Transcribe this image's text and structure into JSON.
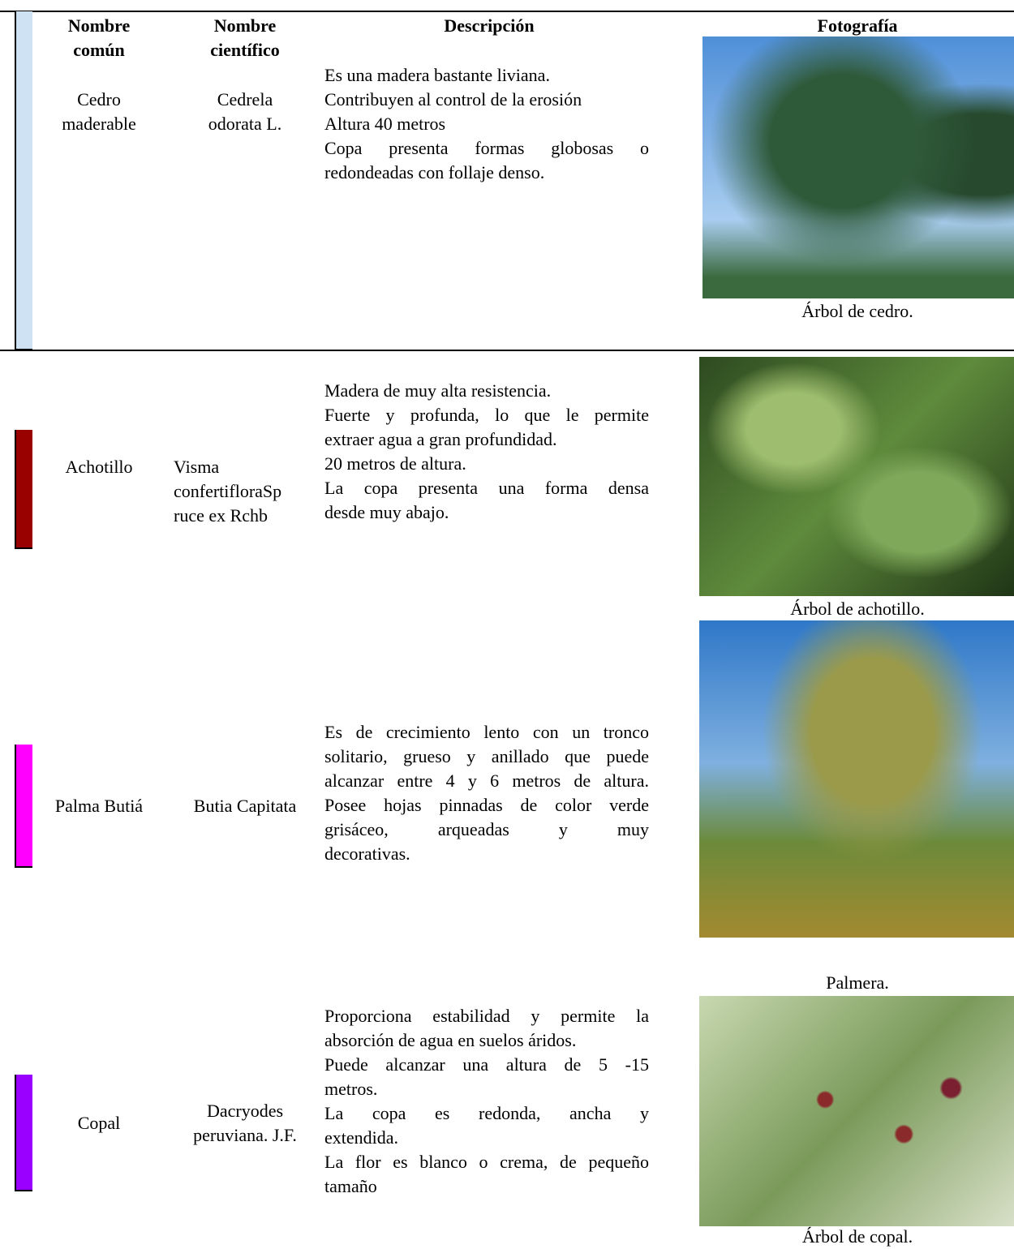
{
  "table": {
    "headers": [
      [
        "Nombre",
        "común"
      ],
      [
        "Nombre",
        "científico"
      ],
      [
        "Descripción"
      ],
      [
        "Fotografía"
      ]
    ],
    "rows": [
      {
        "color": "#cfe2f3",
        "common_name": [
          "Cedro",
          "maderable"
        ],
        "scientific_name": [
          "Cedrela",
          "odorata L."
        ],
        "description": [
          "Es una madera bastante liviana.",
          "Contribuyen al control de la erosión",
          "Altura 40 metros",
          "Copa presenta formas globosas o",
          "redondeadas con follaje denso."
        ],
        "caption": "Árbol de cedro."
      },
      {
        "color": "#990000",
        "common_name": [
          "Achotillo"
        ],
        "scientific_name": [
          "Visma",
          "confertifloraSp",
          "ruce ex Rchb"
        ],
        "description": [
          "Madera de muy alta resistencia.",
          "Fuerte y profunda, lo que le permite",
          "extraer agua a gran profundidad.",
          "20 metros de altura.",
          "La copa presenta una forma densa",
          "desde muy abajo."
        ],
        "caption": "Árbol de achotillo."
      },
      {
        "color": "#ff00ff",
        "common_name": [
          "Palma Butiá"
        ],
        "scientific_name": [
          "Butia Capitata"
        ],
        "description": [
          "Es de crecimiento lento con un tronco",
          "solitario, grueso y anillado que puede",
          "alcanzar entre 4 y 6 metros de altura.",
          "Posee hojas pinnadas de color verde",
          "grisáceo, arqueadas y muy",
          "decorativas."
        ],
        "caption": "Palmera."
      },
      {
        "color": "#9900ff",
        "common_name": [
          "Copal"
        ],
        "scientific_name": [
          "Dacryodes",
          "peruviana. J.F."
        ],
        "description": [
          "Proporciona estabilidad y permite la",
          "absorción de agua en suelos áridos.",
          "Puede alcanzar una altura de 5 -15",
          "metros.",
          "La copa es redonda, ancha y",
          "extendida.",
          "La flor es blanco o crema, de pequeño",
          "tamaño"
        ],
        "caption": "Árbol de copal."
      }
    ]
  }
}
